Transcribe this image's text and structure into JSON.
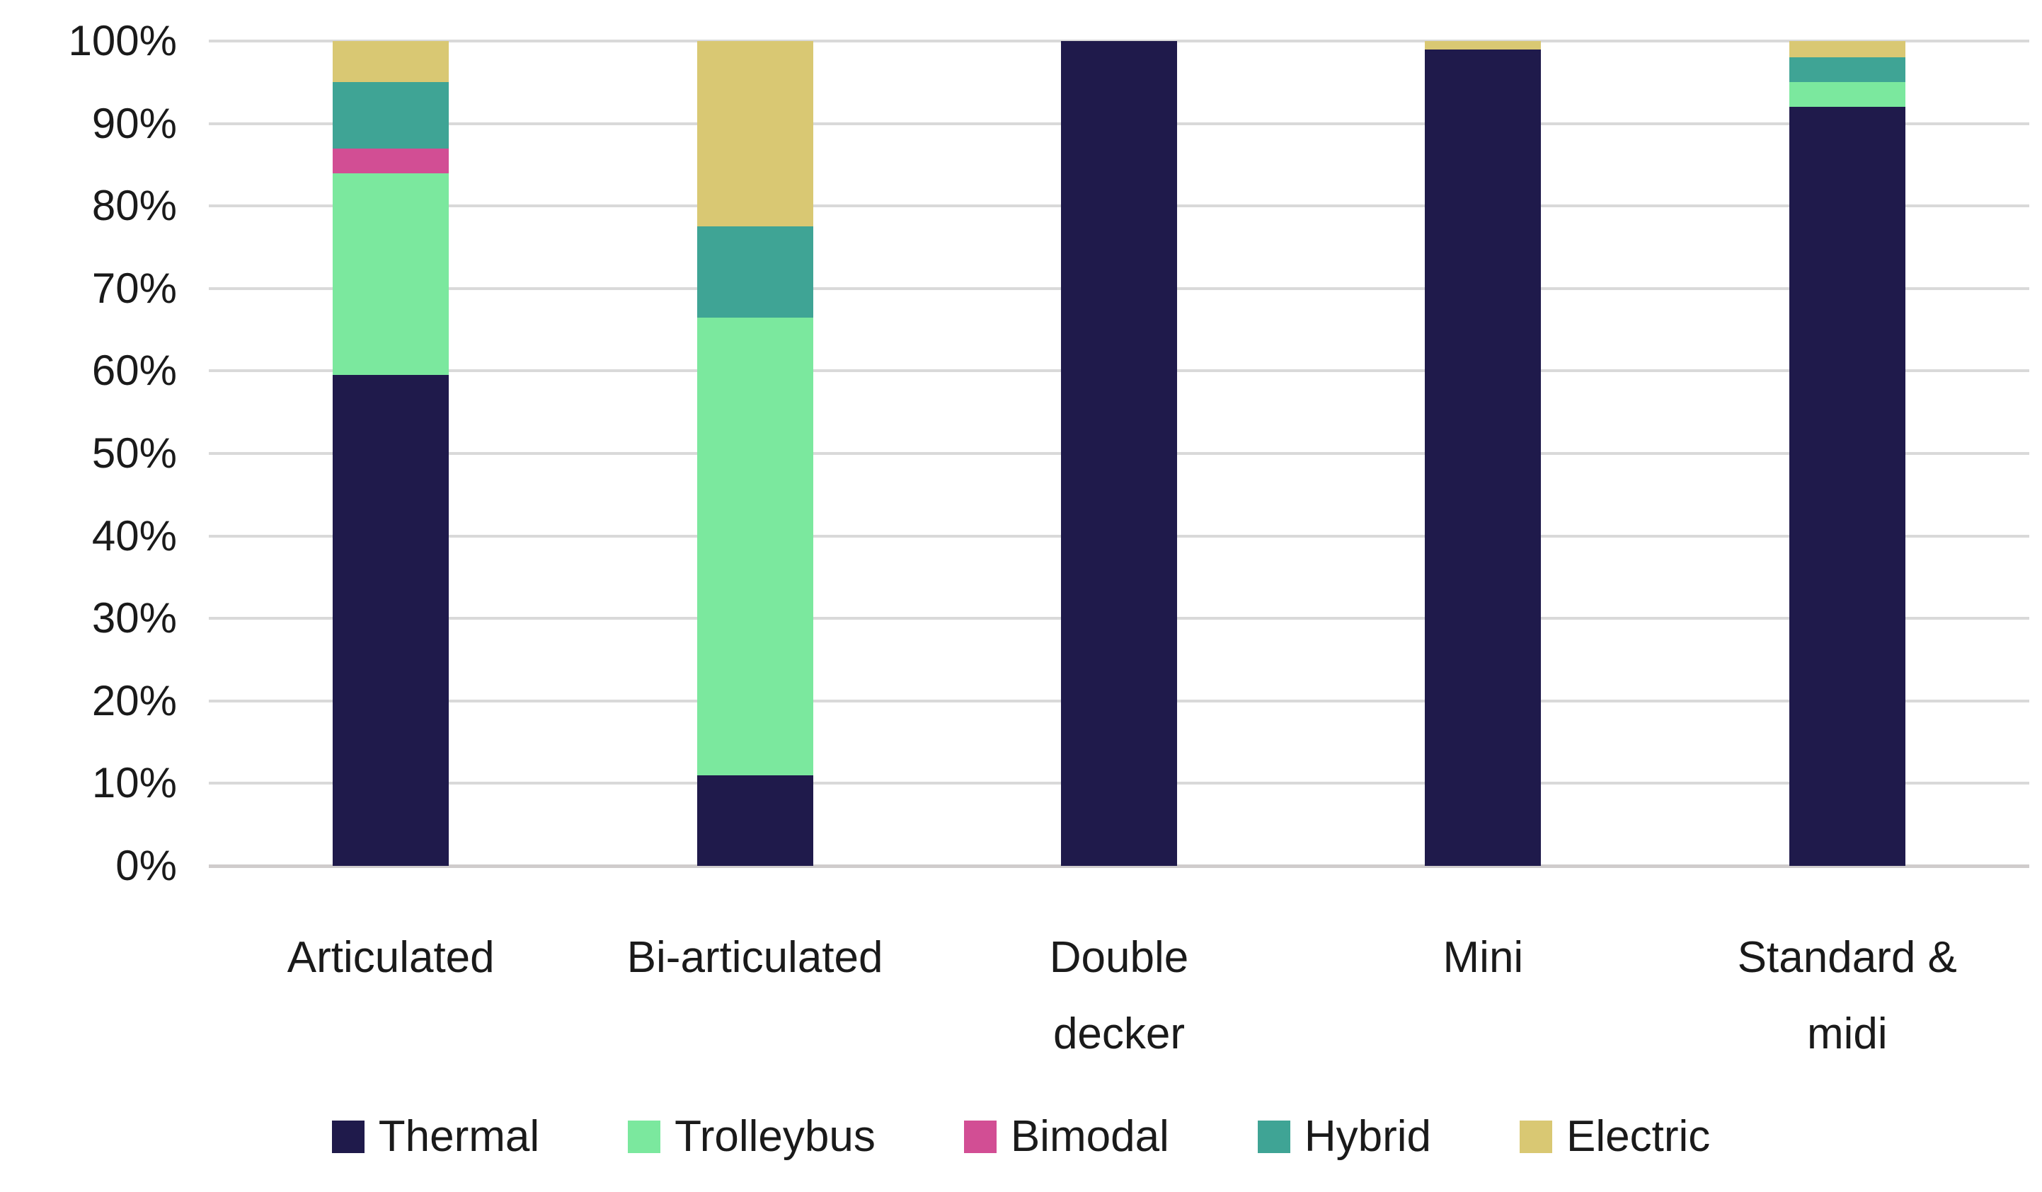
{
  "chart_data": {
    "type": "bar",
    "subtype": "stacked-100-percent",
    "title": "",
    "xlabel": "",
    "ylabel": "",
    "ylim": [
      0,
      100
    ],
    "grid": true,
    "legend_position": "bottom",
    "y_tick_labels": [
      "100%",
      "90%",
      "80%",
      "70%",
      "60%",
      "50%",
      "40%",
      "30%",
      "20%",
      "10%",
      "0%"
    ],
    "categories": [
      "Articulated",
      "Bi-articulated",
      "Double decker",
      "Mini",
      "Standard & midi"
    ],
    "category_label_lines": [
      [
        "Articulated"
      ],
      [
        "Bi-articulated"
      ],
      [
        "Double",
        "decker"
      ],
      [
        "Mini"
      ],
      [
        "Standard &",
        "midi"
      ]
    ],
    "series": [
      {
        "name": "Thermal",
        "color": "#1f1a4b",
        "values": [
          59.5,
          11.0,
          100.0,
          99.0,
          92.0
        ]
      },
      {
        "name": "Trolleybus",
        "color": "#7be89e",
        "values": [
          24.5,
          55.5,
          0.0,
          0.0,
          3.0
        ]
      },
      {
        "name": "Bimodal",
        "color": "#d24e94",
        "values": [
          3.0,
          0.0,
          0.0,
          0.0,
          0.0
        ]
      },
      {
        "name": "Hybrid",
        "color": "#3fa495",
        "values": [
          8.0,
          11.0,
          0.0,
          0.0,
          3.0
        ]
      },
      {
        "name": "Electric",
        "color": "#d9c873",
        "values": [
          5.0,
          22.5,
          0.0,
          1.0,
          2.0
        ]
      }
    ],
    "colors": {
      "gridline": "#d9d9d9",
      "axis_line": "#cfcccc",
      "text": "#1a1a1a",
      "background": "#ffffff"
    }
  }
}
